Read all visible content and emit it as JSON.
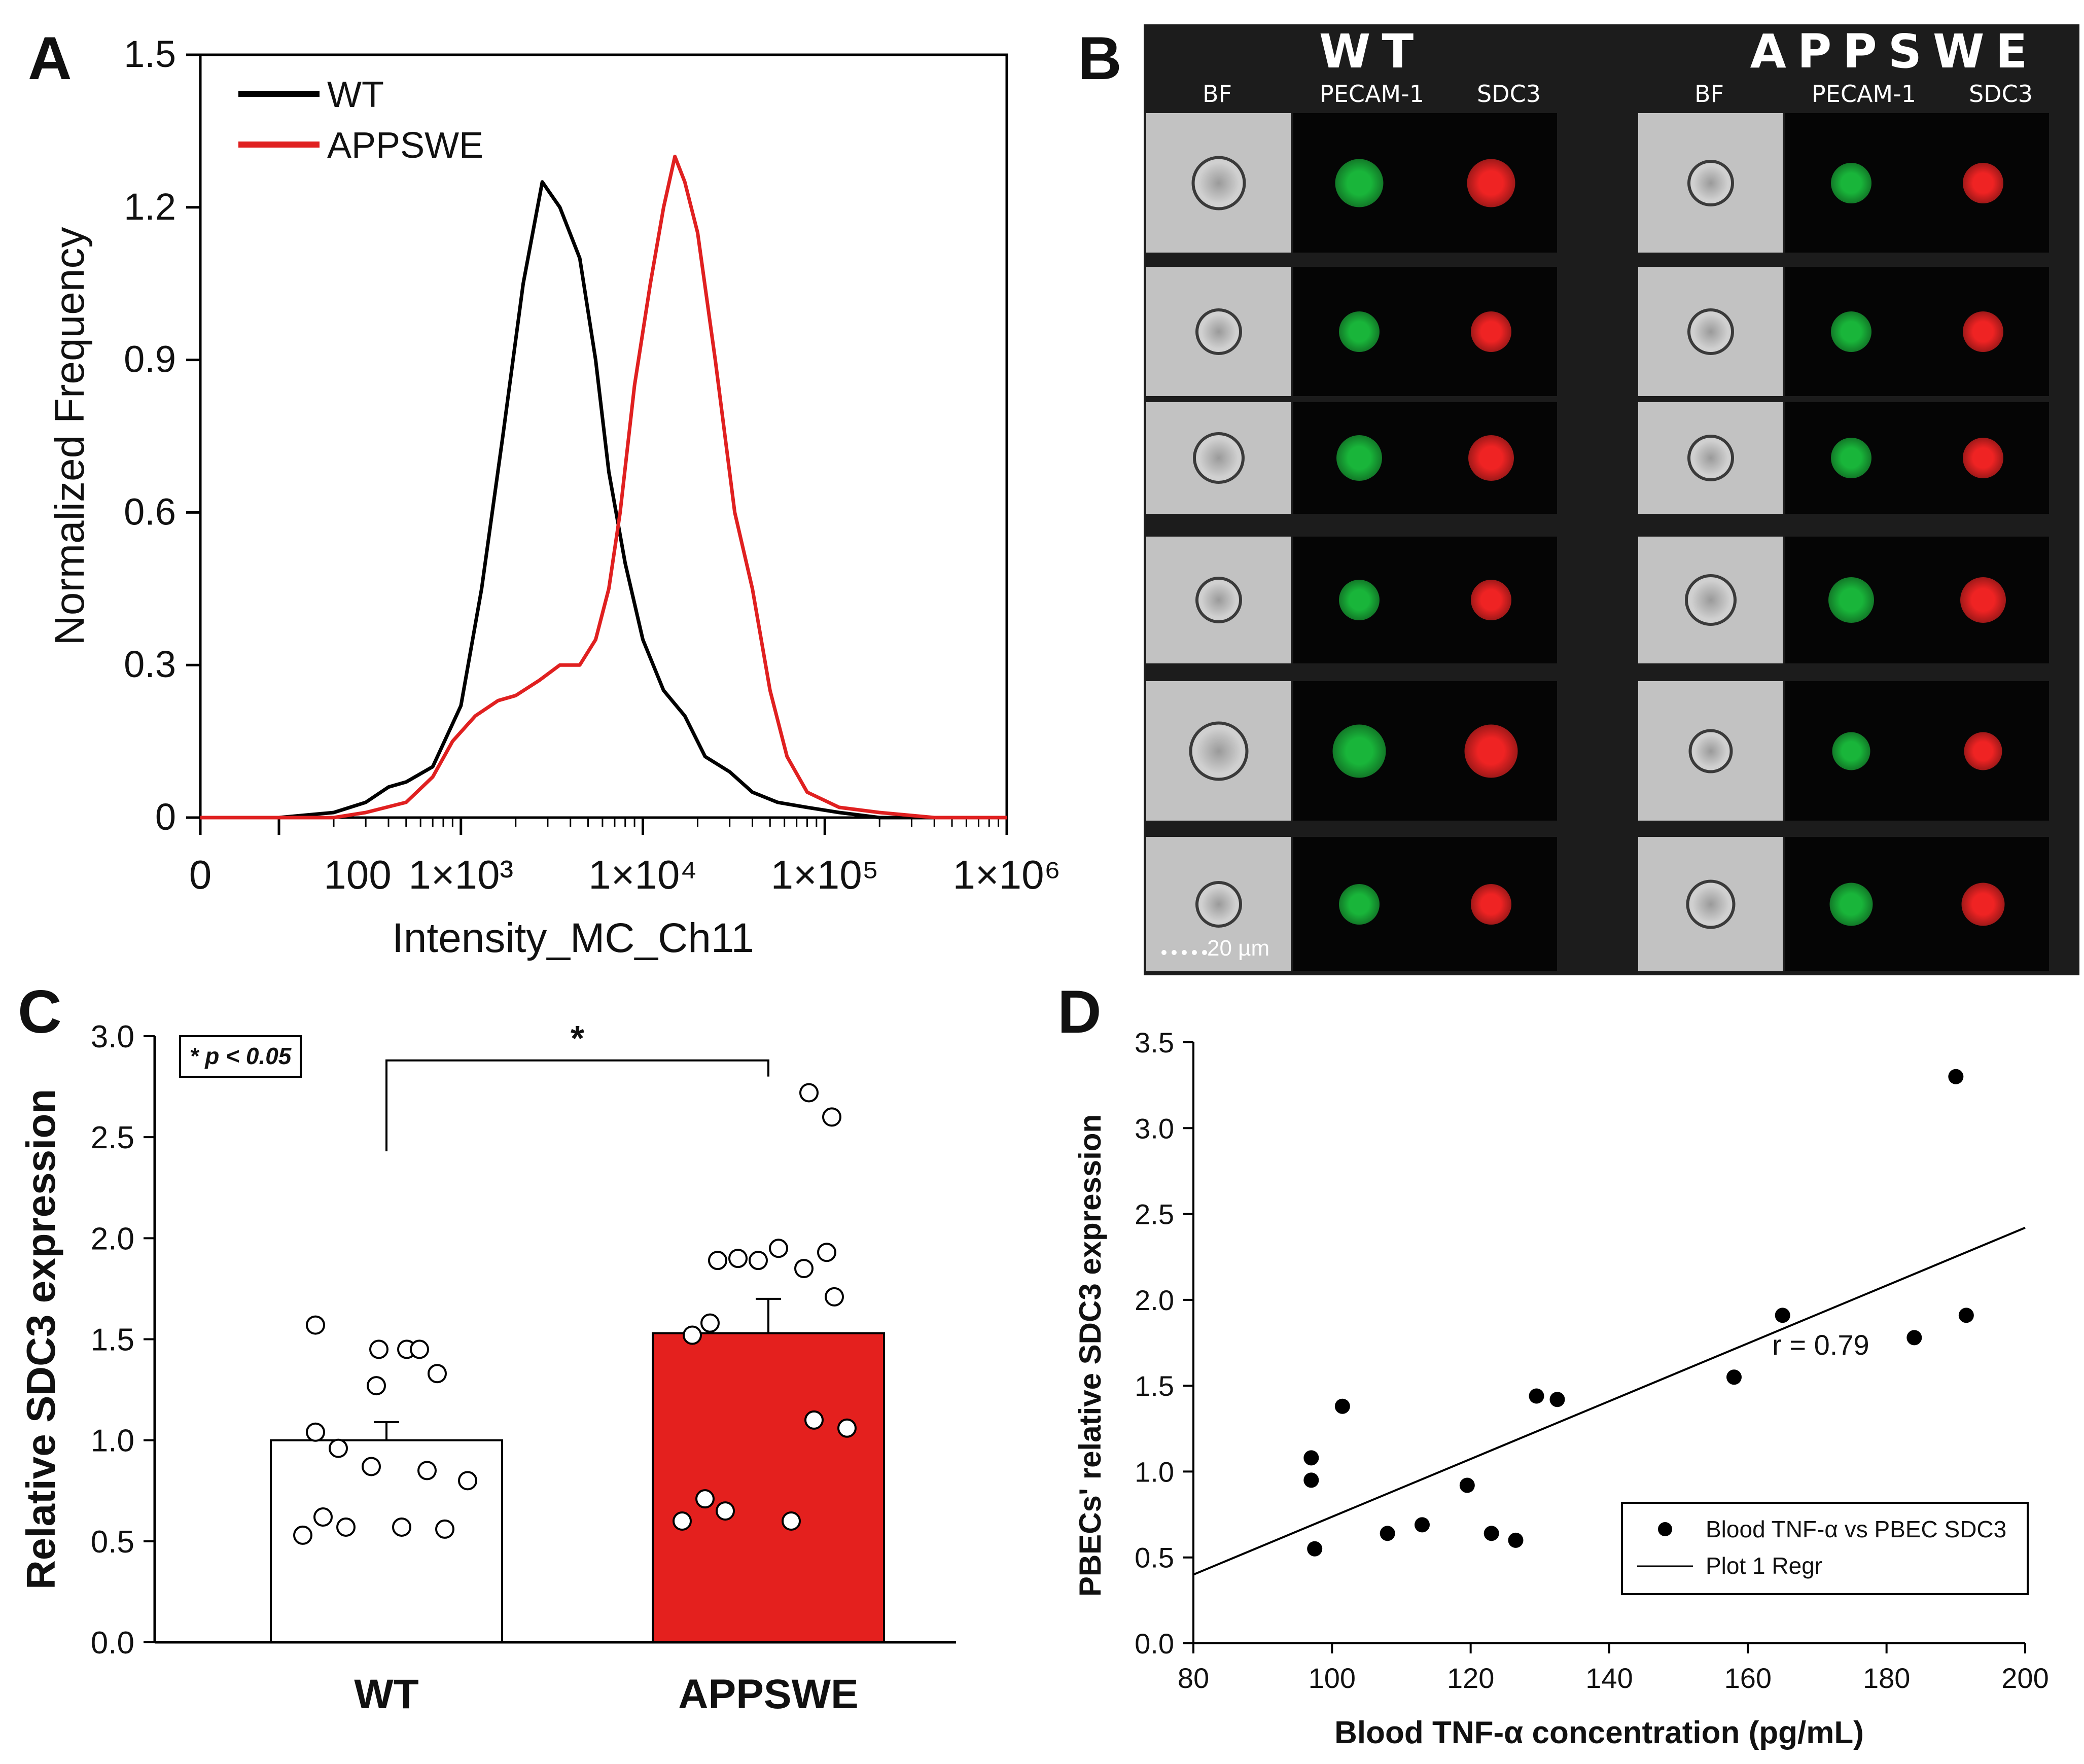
{
  "panel_labels": {
    "a": "A",
    "b": "B",
    "c": "C",
    "d": "D"
  },
  "chart_data": [
    {
      "id": "A",
      "type": "line",
      "title": "",
      "xlabel": "Intensity_MC_Ch11",
      "ylabel": "Normalized Frequency",
      "ylim": [
        0,
        1.5
      ],
      "x_scale": "symlog",
      "x_ticks": [
        0,
        100,
        1000,
        10000,
        100000,
        1000000
      ],
      "x_tick_labels": [
        "0",
        "100",
        "1×10³",
        "1×10⁴",
        "1×10⁵",
        "1×10⁶"
      ],
      "y_ticks": [
        0,
        0.3,
        0.6,
        0.9,
        1.2,
        1.5
      ],
      "y_tick_labels": [
        "0",
        "0.3",
        "0.6",
        "0.9",
        "1.2",
        "1.5"
      ],
      "legend": "top-left",
      "series": [
        {
          "name": "WT",
          "color": "#000000",
          "x": [
            0,
            100,
            200,
            300,
            400,
            500,
            700,
            1000,
            1300,
            1700,
            2200,
            2800,
            3500,
            4500,
            5500,
            6500,
            8000,
            10000,
            13000,
            17000,
            22000,
            30000,
            40000,
            55000,
            80000,
            120000,
            200000,
            400000,
            1000000
          ],
          "y": [
            0.0,
            0.0,
            0.01,
            0.03,
            0.06,
            0.07,
            0.1,
            0.22,
            0.45,
            0.75,
            1.05,
            1.25,
            1.2,
            1.1,
            0.9,
            0.68,
            0.5,
            0.35,
            0.25,
            0.2,
            0.12,
            0.09,
            0.05,
            0.03,
            0.02,
            0.01,
            0.0,
            0.0,
            0.0
          ]
        },
        {
          "name": "APPSWE",
          "color": "#e02020",
          "x": [
            0,
            100,
            200,
            300,
            500,
            700,
            900,
            1200,
            1600,
            2000,
            2700,
            3500,
            4500,
            5500,
            6500,
            7500,
            9000,
            11000,
            13000,
            15000,
            17000,
            20000,
            25000,
            32000,
            40000,
            50000,
            62000,
            80000,
            120000,
            200000,
            400000,
            1000000
          ],
          "y": [
            0.0,
            0.0,
            0.0,
            0.01,
            0.03,
            0.08,
            0.15,
            0.2,
            0.23,
            0.24,
            0.27,
            0.3,
            0.3,
            0.35,
            0.45,
            0.6,
            0.85,
            1.05,
            1.2,
            1.3,
            1.25,
            1.15,
            0.9,
            0.6,
            0.45,
            0.25,
            0.12,
            0.05,
            0.02,
            0.01,
            0.0,
            0.0
          ]
        }
      ]
    },
    {
      "id": "C",
      "type": "bar",
      "title": "",
      "xlabel": "",
      "ylabel": "Relative SDC3 expression",
      "ylim": [
        0,
        3.0
      ],
      "y_ticks": [
        0.0,
        0.5,
        1.0,
        1.5,
        2.0,
        2.5,
        3.0
      ],
      "y_tick_labels": [
        "0.0",
        "0.5",
        "1.0",
        "1.5",
        "2.0",
        "2.5",
        "3.0"
      ],
      "categories": [
        "WT",
        "APPSWE"
      ],
      "values": [
        1.0,
        1.53
      ],
      "errors": [
        0.09,
        0.17
      ],
      "colors": [
        "#ffffff",
        "#e4201e"
      ],
      "points": [
        [
          1.57,
          1.45,
          1.45,
          1.45,
          1.33,
          1.27,
          1.04,
          0.96,
          0.87,
          0.85,
          0.8,
          0.62,
          0.57,
          0.57,
          0.56,
          0.53
        ],
        [
          2.72,
          2.6,
          1.95,
          1.93,
          1.9,
          1.89,
          1.89,
          1.85,
          1.71,
          1.58,
          1.52,
          1.1,
          1.06,
          0.71,
          0.65,
          0.6,
          0.6
        ]
      ],
      "significance": {
        "label": "*",
        "note": "* p < 0.05"
      }
    },
    {
      "id": "D",
      "type": "scatter",
      "title": "",
      "xlabel": "Blood TNF-α concentration (pg/mL)",
      "ylabel": "PBECs' relative SDC3 expression",
      "xlim": [
        80,
        200
      ],
      "ylim": [
        0.0,
        3.5
      ],
      "x_ticks": [
        80,
        100,
        120,
        140,
        160,
        180,
        200
      ],
      "x_tick_labels": [
        "80",
        "100",
        "120",
        "140",
        "160",
        "180",
        "200"
      ],
      "y_ticks": [
        0.0,
        0.5,
        1.0,
        1.5,
        2.0,
        2.5,
        3.0,
        3.5
      ],
      "y_tick_labels": [
        "0.0",
        "0.5",
        "1.0",
        "1.5",
        "2.0",
        "2.5",
        "3.0",
        "3.5"
      ],
      "points": [
        {
          "x": 97,
          "y": 1.08
        },
        {
          "x": 97,
          "y": 0.95
        },
        {
          "x": 97.5,
          "y": 0.55
        },
        {
          "x": 101.5,
          "y": 1.38
        },
        {
          "x": 108,
          "y": 0.64
        },
        {
          "x": 113,
          "y": 0.69
        },
        {
          "x": 119.5,
          "y": 0.92
        },
        {
          "x": 123,
          "y": 0.64
        },
        {
          "x": 126.5,
          "y": 0.6
        },
        {
          "x": 129.5,
          "y": 1.44
        },
        {
          "x": 132.5,
          "y": 1.42
        },
        {
          "x": 158,
          "y": 1.55
        },
        {
          "x": 165,
          "y": 1.91
        },
        {
          "x": 184,
          "y": 1.78
        },
        {
          "x": 190,
          "y": 3.3
        },
        {
          "x": 191.5,
          "y": 1.91
        }
      ],
      "regression": {
        "x": [
          80,
          200
        ],
        "y": [
          0.4,
          2.42
        ]
      },
      "annotation": "r = 0.79",
      "legend": {
        "position": "bottom-right",
        "entries": [
          "Blood TNF-α vs PBEC SDC3",
          "Plot 1 Regr"
        ]
      }
    }
  ],
  "panelB": {
    "groups": [
      "WT",
      "APPSWE"
    ],
    "columns": [
      "BF",
      "PECAM-1",
      "SDC3"
    ],
    "rows": 6,
    "scale_bar": "20 µm",
    "colors": {
      "bf": "#c2c2c2",
      "green": "#19b53a",
      "red": "#ef2323"
    }
  }
}
